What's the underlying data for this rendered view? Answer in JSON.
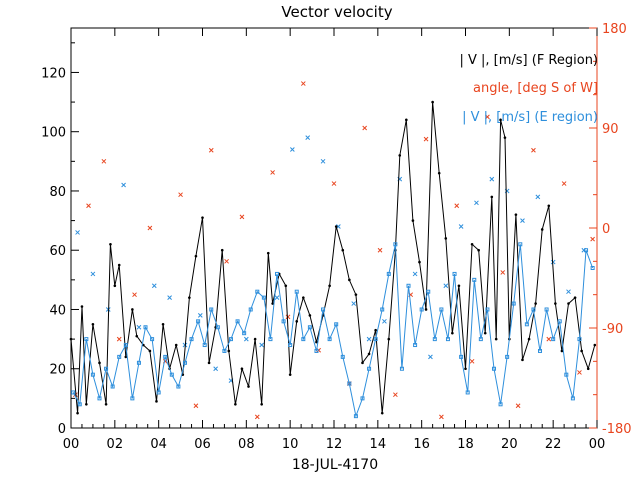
{
  "chart_data": {
    "type": "line",
    "title": "Vector velocity",
    "xlabel": "18-JUL-4170",
    "xlim": [
      0,
      24
    ],
    "x_ticks": [
      "00",
      "02",
      "04",
      "06",
      "08",
      "10",
      "12",
      "14",
      "16",
      "18",
      "20",
      "22",
      "00"
    ],
    "ylim": [
      0,
      135
    ],
    "y_ticks": [
      "0",
      "20",
      "40",
      "60",
      "80",
      "100",
      "120"
    ],
    "y2lim": [
      -180,
      180
    ],
    "y2_ticks": [
      "-180",
      "-90",
      "0",
      "90",
      "180"
    ],
    "legend": [
      {
        "label": "| V |, [m/s] (F Region)",
        "color": "#000000"
      },
      {
        "label": "angle, [deg S of W]",
        "color": "#e8451f"
      },
      {
        "label": "| V |, [m/s] (E region)",
        "color": "#2e8fdc"
      }
    ],
    "series": [
      {
        "name": "| V |, [m/s] (F Region)",
        "axis": "left",
        "color": "#000000",
        "x": [
          0.0,
          0.3,
          0.5,
          0.7,
          1.0,
          1.3,
          1.6,
          1.8,
          2.0,
          2.2,
          2.5,
          2.8,
          3.0,
          3.3,
          3.6,
          3.9,
          4.2,
          4.5,
          4.8,
          5.1,
          5.4,
          5.7,
          6.0,
          6.3,
          6.6,
          6.9,
          7.2,
          7.5,
          7.8,
          8.1,
          8.4,
          8.7,
          9.0,
          9.2,
          9.5,
          9.8,
          10.0,
          10.3,
          10.6,
          10.9,
          11.2,
          11.5,
          11.8,
          12.1,
          12.4,
          12.7,
          13.0,
          13.3,
          13.6,
          13.9,
          14.2,
          14.5,
          14.8,
          15.0,
          15.3,
          15.6,
          15.9,
          16.2,
          16.5,
          16.8,
          17.1,
          17.4,
          17.7,
          18.0,
          18.3,
          18.6,
          18.9,
          19.2,
          19.4,
          19.6,
          19.8,
          20.0,
          20.3,
          20.6,
          20.9,
          21.2,
          21.5,
          21.8,
          22.1,
          22.4,
          22.7,
          23.0,
          23.3,
          23.6,
          23.9
        ],
        "y": [
          30,
          5,
          41,
          8,
          35,
          22,
          8,
          62,
          48,
          55,
          24,
          40,
          31,
          28,
          26,
          9,
          35,
          20,
          28,
          18,
          44,
          58,
          71,
          22,
          34,
          60,
          26,
          8,
          20,
          14,
          30,
          8,
          59,
          42,
          52,
          48,
          18,
          36,
          44,
          38,
          29,
          38,
          48,
          68,
          60,
          50,
          45,
          22,
          25,
          33,
          5,
          30,
          60,
          92,
          104,
          70,
          56,
          40,
          110,
          86,
          64,
          32,
          48,
          20,
          62,
          60,
          32,
          78,
          30,
          104,
          98,
          30,
          72,
          23,
          30,
          42,
          67,
          75,
          42,
          26,
          42,
          44,
          26,
          20,
          28
        ]
      },
      {
        "name": "| V |, [m/s] (E region)",
        "axis": "left",
        "color": "#2e8fdc",
        "x": [
          0.1,
          0.4,
          0.7,
          1.0,
          1.3,
          1.6,
          1.9,
          2.2,
          2.5,
          2.8,
          3.1,
          3.4,
          3.7,
          4.0,
          4.3,
          4.6,
          4.9,
          5.2,
          5.5,
          5.8,
          6.1,
          6.4,
          6.7,
          7.0,
          7.3,
          7.6,
          7.9,
          8.2,
          8.5,
          8.8,
          9.1,
          9.4,
          9.7,
          10.0,
          10.3,
          10.6,
          10.9,
          11.2,
          11.5,
          11.8,
          12.1,
          12.4,
          12.7,
          13.0,
          13.3,
          13.6,
          13.9,
          14.2,
          14.5,
          14.8,
          15.1,
          15.4,
          15.7,
          16.0,
          16.3,
          16.6,
          16.9,
          17.2,
          17.5,
          17.8,
          18.1,
          18.4,
          18.7,
          19.0,
          19.3,
          19.6,
          19.9,
          20.2,
          20.5,
          20.8,
          21.1,
          21.4,
          21.7,
          22.0,
          22.3,
          22.6,
          22.9,
          23.2,
          23.5,
          23.8
        ],
        "y": [
          12,
          8,
          30,
          18,
          10,
          20,
          14,
          24,
          28,
          10,
          22,
          34,
          30,
          12,
          24,
          18,
          14,
          22,
          30,
          36,
          28,
          40,
          34,
          26,
          30,
          36,
          32,
          40,
          46,
          44,
          30,
          52,
          36,
          28,
          46,
          30,
          34,
          26,
          40,
          30,
          35,
          24,
          15,
          4,
          10,
          20,
          30,
          40,
          52,
          62,
          20,
          48,
          28,
          40,
          46,
          30,
          40,
          30,
          52,
          24,
          12,
          50,
          30,
          40,
          20,
          8,
          24,
          42,
          62,
          35,
          40,
          26,
          40,
          30,
          36,
          18,
          10,
          30,
          60,
          54
        ]
      }
    ],
    "scatter": [
      {
        "name": "angle, [deg S of W]",
        "axis": "right",
        "marker": "x",
        "color": "#e8451f",
        "x": [
          0.2,
          0.8,
          1.5,
          2.2,
          2.9,
          3.6,
          4.3,
          5.0,
          5.7,
          6.4,
          7.1,
          7.8,
          8.5,
          9.2,
          9.9,
          10.6,
          11.3,
          12.0,
          12.7,
          13.4,
          14.1,
          14.8,
          15.5,
          16.2,
          16.9,
          17.6,
          18.3,
          19.0,
          19.7,
          20.4,
          21.1,
          21.8,
          22.5,
          23.2,
          23.8
        ],
        "y": [
          -150,
          20,
          60,
          -100,
          -60,
          0,
          -120,
          30,
          -160,
          70,
          -30,
          10,
          -170,
          50,
          -80,
          130,
          -110,
          40,
          -140,
          90,
          -20,
          -150,
          -60,
          80,
          -170,
          20,
          -120,
          100,
          -40,
          -160,
          70,
          -100,
          40,
          -130,
          -10
        ]
      },
      {
        "name": "| V |, [m/s] (E region) samples",
        "axis": "left",
        "marker": "x",
        "color": "#2e8fdc",
        "x": [
          0.3,
          1.0,
          1.7,
          2.4,
          3.1,
          3.8,
          4.5,
          5.2,
          5.9,
          6.6,
          7.3,
          8.0,
          8.7,
          9.4,
          10.1,
          10.8,
          11.5,
          12.2,
          12.9,
          13.6,
          14.3,
          15.0,
          15.7,
          16.4,
          17.1,
          17.8,
          18.5,
          19.2,
          19.9,
          20.6,
          21.3,
          22.0,
          22.7,
          23.4
        ],
        "y": [
          66,
          52,
          40,
          82,
          34,
          48,
          44,
          28,
          38,
          20,
          16,
          30,
          28,
          44,
          94,
          98,
          90,
          68,
          42,
          30,
          36,
          84,
          52,
          24,
          48,
          68,
          76,
          84,
          80,
          70,
          78,
          56,
          46,
          60
        ]
      }
    ]
  }
}
